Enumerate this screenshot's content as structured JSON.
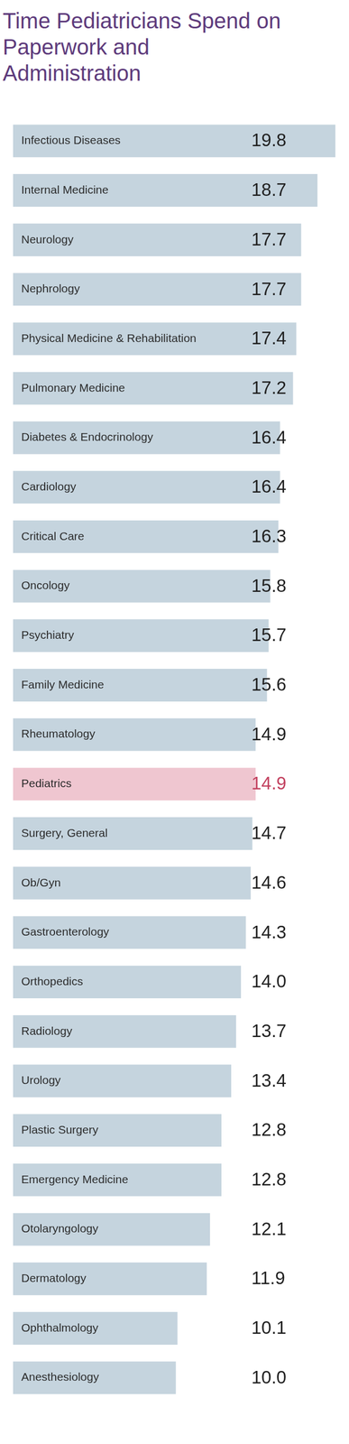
{
  "chart_data": {
    "type": "bar",
    "orientation": "horizontal",
    "title": "Time Pediatricians Spend on Paperwork and Administration",
    "categories": [
      "Infectious Diseases",
      "Internal Medicine",
      "Neurology",
      "Nephrology",
      "Physical Medicine & Rehabilitation",
      "Pulmonary Medicine",
      "Diabetes & Endocrinology",
      "Cardiology",
      "Critical Care",
      "Oncology",
      "Psychiatry",
      "Family Medicine",
      "Rheumatology",
      "Pediatrics",
      "Surgery, General",
      "Ob/Gyn",
      "Gastroenterology",
      "Orthopedics",
      "Radiology",
      "Urology",
      "Plastic Surgery",
      "Emergency Medicine",
      "Otolaryngology",
      "Dermatology",
      "Ophthalmology",
      "Anesthesiology"
    ],
    "values": [
      19.8,
      18.7,
      17.7,
      17.7,
      17.4,
      17.2,
      16.4,
      16.4,
      16.3,
      15.8,
      15.7,
      15.6,
      14.9,
      14.9,
      14.7,
      14.6,
      14.3,
      14.0,
      13.7,
      13.4,
      12.8,
      12.8,
      12.1,
      11.9,
      10.1,
      10.0
    ],
    "value_labels": [
      "19.8",
      "18.7",
      "17.7",
      "17.7",
      "17.4",
      "17.2",
      "16.4",
      "16.4",
      "16.3",
      "15.8",
      "15.7",
      "15.6",
      "14.9",
      "14.9",
      "14.7",
      "14.6",
      "14.3",
      "14.0",
      "13.7",
      "13.4",
      "12.8",
      "12.8",
      "12.1",
      "11.9",
      "10.1",
      "10.0"
    ],
    "colors": [
      "#c5d4de",
      "#c5d4de",
      "#c5d4de",
      "#c5d4de",
      "#c5d4de",
      "#c5d4de",
      "#c5d4de",
      "#c5d4de",
      "#c5d4de",
      "#c5d4de",
      "#c5d4de",
      "#c5d4de",
      "#c5d4de",
      "#efc6d0",
      "#c5d4de",
      "#c5d4de",
      "#c5d4de",
      "#c5d4de",
      "#c5d4de",
      "#c5d4de",
      "#c5d4de",
      "#c5d4de",
      "#c5d4de",
      "#c5d4de",
      "#c5d4de",
      "#c5d4de"
    ],
    "xlim": [
      0,
      19.8
    ],
    "grid": false,
    "data_labels": true,
    "tick_labels": false
  }
}
